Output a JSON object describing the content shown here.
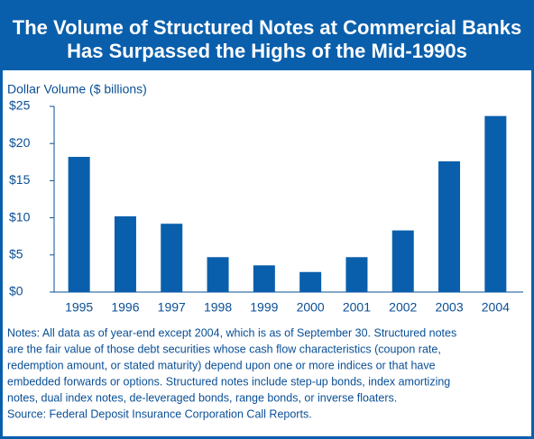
{
  "chart_data": {
    "type": "bar",
    "title": [
      "The Volume of Structured Notes at Commercial Banks",
      "Has Surpassed the Highs of the Mid-1990s"
    ],
    "y_axis_label": "Dollar Volume ($ billions)",
    "categories": [
      "1995",
      "1996",
      "1997",
      "1998",
      "1999",
      "2000",
      "2001",
      "2002",
      "2003",
      "2004"
    ],
    "values": [
      18.2,
      10.2,
      9.2,
      4.7,
      3.6,
      2.7,
      4.7,
      8.3,
      17.6,
      23.7
    ],
    "color": "#0a5fac",
    "ylim": [
      0,
      25
    ],
    "yticks": [
      {
        "value": 0,
        "label": "$0"
      },
      {
        "value": 5,
        "label": "$5"
      },
      {
        "value": 10,
        "label": "$10"
      },
      {
        "value": 15,
        "label": "$15"
      },
      {
        "value": 20,
        "label": "$20"
      },
      {
        "value": 25,
        "label": "$25"
      }
    ],
    "grid": false,
    "notes": [
      "Notes: All data as of year-end except 2004, which is as of September 30. Structured notes",
      "are the fair value of those debt securities whose cash flow characteristics (coupon rate,",
      "redemption amount, or stated maturity) depend upon one or more indices or that have",
      "embedded forwards or options. Structured notes include step-up bonds, index amortizing",
      "notes, dual index notes, de-leveraged bonds, range bonds,  or inverse floaters.",
      "Source: Federal Deposit Insurance Corporation Call Reports."
    ]
  }
}
